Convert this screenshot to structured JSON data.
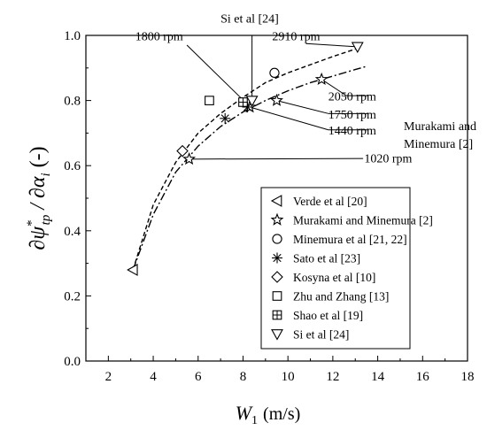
{
  "chart_data": {
    "type": "scatter",
    "xlabel": "W",
    "xlabel_sub": "1",
    "xlabel_unit": "(m/s)",
    "ylabel": "∂ψ*tp / ∂αi (-)",
    "ylabel_parts": {
      "num": "∂ψ",
      "sup": "*",
      "sub": "tp",
      "mid": " / ∂α",
      "sub2": "i",
      "tail": "  (-)"
    },
    "xlim": [
      1,
      18
    ],
    "ylim": [
      0,
      1.0
    ],
    "xticks": [
      "2",
      "4",
      "6",
      "8",
      "10",
      "12",
      "14",
      "16",
      "18"
    ],
    "yticks": [
      "0.0",
      "0.2",
      "0.4",
      "0.6",
      "0.8",
      "1.0"
    ],
    "legend_position": "lower-right",
    "series": [
      {
        "name": "Verde et al [20]",
        "marker": "triangle-left",
        "points": [
          [
            3.1,
            0.28
          ]
        ]
      },
      {
        "name": "Murakami and Minemura [2]",
        "marker": "star",
        "points": [
          [
            5.6,
            0.62
          ],
          [
            8.3,
            0.78
          ],
          [
            9.5,
            0.8
          ],
          [
            11.5,
            0.865
          ]
        ]
      },
      {
        "name": "Minemura et al [21, 22]",
        "marker": "circle",
        "points": [
          [
            9.4,
            0.885
          ]
        ]
      },
      {
        "name": "Sato et al [23]",
        "marker": "asterisk",
        "points": [
          [
            7.2,
            0.745
          ],
          [
            8.2,
            0.78
          ]
        ]
      },
      {
        "name": "Kosyna et al [10]",
        "marker": "diamond",
        "points": [
          [
            5.3,
            0.645
          ]
        ]
      },
      {
        "name": "Zhu and Zhang [13]",
        "marker": "square",
        "points": [
          [
            6.5,
            0.8
          ]
        ]
      },
      {
        "name": "Shao et al [19]",
        "marker": "square-plus",
        "points": [
          [
            8.0,
            0.795
          ]
        ]
      },
      {
        "name": "Si et al [24]",
        "marker": "triangle-down",
        "points": [
          [
            8.4,
            0.8
          ],
          [
            13.1,
            0.965
          ]
        ]
      }
    ],
    "fit_curves": [
      {
        "style": "dashed",
        "points": [
          [
            3.1,
            0.28
          ],
          [
            4,
            0.48
          ],
          [
            5,
            0.61
          ],
          [
            6,
            0.7
          ],
          [
            7,
            0.76
          ],
          [
            8,
            0.81
          ],
          [
            9,
            0.855
          ],
          [
            10,
            0.885
          ],
          [
            11,
            0.91
          ],
          [
            12,
            0.935
          ],
          [
            13,
            0.958
          ],
          [
            13.2,
            0.962
          ]
        ]
      },
      {
        "style": "dash-dot",
        "points": [
          [
            3.1,
            0.28
          ],
          [
            4,
            0.45
          ],
          [
            5,
            0.58
          ],
          [
            6,
            0.66
          ],
          [
            7,
            0.72
          ],
          [
            8,
            0.765
          ],
          [
            9,
            0.8
          ],
          [
            10,
            0.83
          ],
          [
            11,
            0.855
          ],
          [
            12,
            0.875
          ],
          [
            13,
            0.895
          ],
          [
            13.5,
            0.905
          ]
        ]
      }
    ],
    "annotations": [
      {
        "text": "Si et al [24]",
        "tx": 7.0,
        "ty": 1.04,
        "ax": 8.4,
        "ay": 0.8,
        "line_from": [
          8.4,
          1.0
        ]
      },
      {
        "text": "1800 rpm",
        "tx": 3.2,
        "ty": 0.985,
        "ax": 8.1,
        "ay": 0.795,
        "line_from": [
          5.5,
          0.97
        ]
      },
      {
        "text": "2910 rpm",
        "tx": 9.3,
        "ty": 0.985,
        "ax": 13.1,
        "ay": 0.965,
        "line_from": [
          10.8,
          0.975
        ]
      },
      {
        "text": "2050 rpm",
        "tx": 11.8,
        "ty": 0.8,
        "ax": 11.5,
        "ay": 0.865,
        "line_from": [
          12.6,
          0.815
        ]
      },
      {
        "text": "1750 rpm",
        "tx": 11.8,
        "ty": 0.745,
        "ax": 9.5,
        "ay": 0.8,
        "line_from": [
          11.8,
          0.76
        ]
      },
      {
        "text": "1440 rpm",
        "tx": 11.8,
        "ty": 0.695,
        "ax": 8.3,
        "ay": 0.78,
        "line_from": [
          11.8,
          0.71
        ]
      },
      {
        "text": "1020 rpm",
        "tx": 13.4,
        "ty": 0.61,
        "ax": 5.6,
        "ay": 0.62,
        "line_from": [
          13.35,
          0.622
        ]
      }
    ],
    "side_note": [
      "Murakami and",
      "Minemura [2]"
    ]
  }
}
